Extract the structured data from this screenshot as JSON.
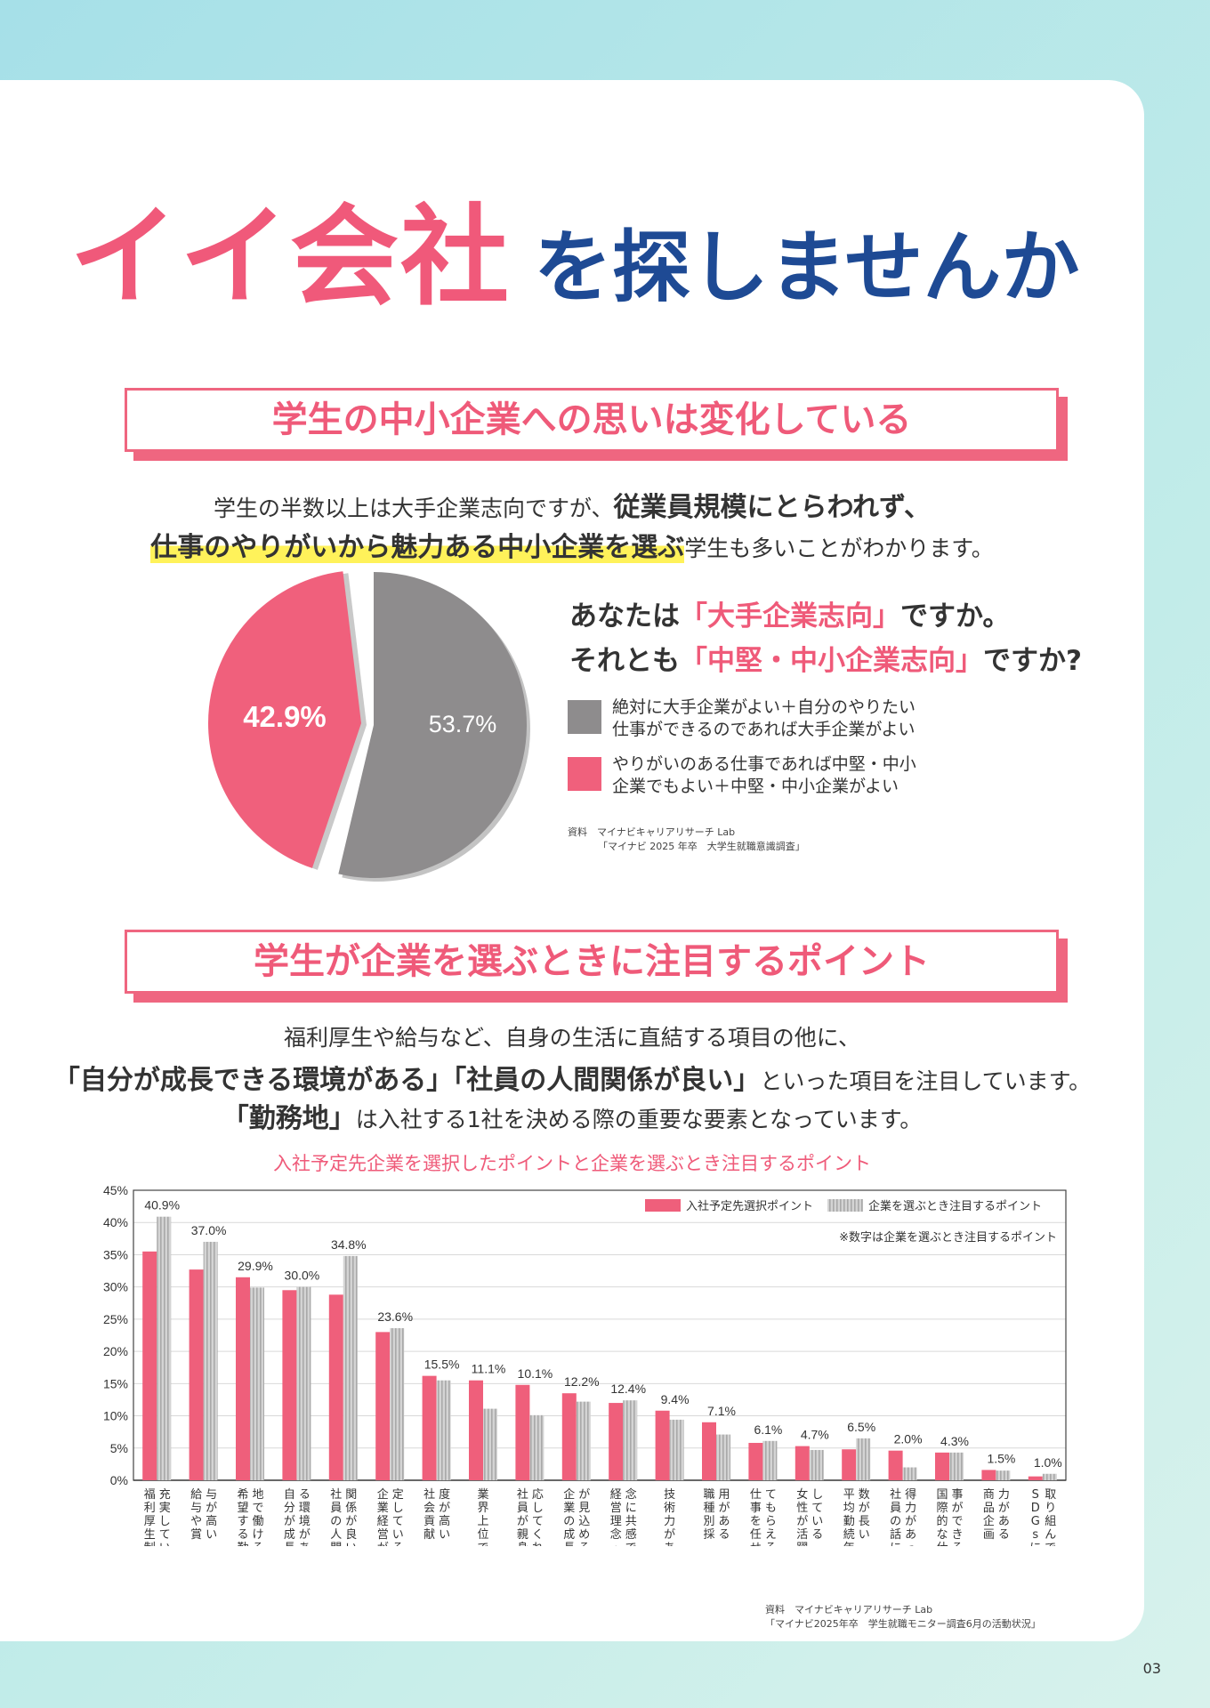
{
  "headline": {
    "pink": "イイ会社",
    "blue": "を探しませんか"
  },
  "section1": {
    "title": "学生の中小企業への思いは変化している",
    "intro_line1_a": "学生の半数以上は大手企業志向ですが、",
    "intro_line1_b": "従業員規模にとらわれず、",
    "intro_line2_a": "仕事のやりがいから魅力ある中小企業を選ぶ",
    "intro_line2_b": "学生も多いことがわかります。",
    "question_line1_a": "あなたは",
    "question_line1_b": "「大手企業志向」",
    "question_line1_c": "ですか。",
    "question_line2_a": "それとも",
    "question_line2_b": "「中堅・中小企業志向」",
    "question_line2_c": "ですか?",
    "legend": [
      {
        "line1": "絶対に大手企業がよい＋自分のやりたい",
        "line2": "仕事ができるのであれば大手企業がよい",
        "color": "#8e8c8d"
      },
      {
        "line1": "やりがいのある仕事であれば中堅・中小",
        "line2": "企業でもよい＋中堅・中小企業がよい",
        "color": "#f0607c"
      }
    ],
    "source_line1": "資料　マイナビキャリアリサーチ Lab",
    "source_line2": "「マイナビ 2025 年卒　大学生就職意識調査」"
  },
  "section2": {
    "title": "学生が企業を選ぶときに注目するポイント",
    "intro_line1": "福利厚生や給与など、自身の生活に直結する項目の他に、",
    "intro_line2_a": "「自分が成長できる環境がある」「社員の人間関係が良い」",
    "intro_line2_b": "といった項目を注目しています。",
    "intro_line3_a": "「勤務地」",
    "intro_line3_b": "は入社する1社を決める際の重要な要素となっています。",
    "chart_title": "入社予定先企業を選択したポイントと企業を選ぶとき注目するポイント",
    "note": "※数字は企業を選ぶとき注目するポイント",
    "source_line1": "資料　マイナビキャリアリサーチ Lab",
    "source_line2": "「マイナビ2025年卒　学生就職モニター調査6月の活動状況」"
  },
  "page_number": "03",
  "colors": {
    "pink": "#f0597a",
    "navy": "#1e4a94",
    "gray": "#8e8c8d",
    "bar_pink": "#ef5f7b",
    "bar_gray": "#c4c4c4"
  },
  "chart_data": [
    {
      "type": "pie",
      "slices": [
        {
          "label": "53.7%",
          "value": 53.7,
          "color": "#8e8c8d"
        },
        {
          "label": "42.9%",
          "value": 42.9,
          "color": "#f0607c"
        }
      ]
    },
    {
      "type": "bar",
      "ylim": [
        0,
        45
      ],
      "yticks": [
        "0%",
        "5%",
        "10%",
        "15%",
        "20%",
        "25%",
        "30%",
        "35%",
        "40%",
        "45%"
      ],
      "categories": [
        "福利厚生制度が充実している",
        "給与や賞与が高い",
        "希望する勤務地で働ける",
        "自分が成長できる環境がある",
        "社員の人間関係が良い",
        "企業経営が安定している",
        "社会貢献度が高い",
        "業界上位である",
        "社員が親身に対応してくれる",
        "企業の成長性が見込める",
        "経営理念・企業理念に共感できる",
        "技術力がある",
        "職種別採用がある",
        "仕事を任せてもらえる",
        "女性が活躍している",
        "平均勤続年数が長い",
        "社員の話に説得力があった",
        "国際的な仕事ができる",
        "商品企画力がある",
        "SDGsに熱心に取り組んでいる"
      ],
      "series": [
        {
          "name": "入社予定先選択ポイント",
          "values": [
            35.5,
            32.7,
            31.5,
            29.5,
            28.8,
            23.0,
            16.2,
            15.5,
            14.8,
            13.5,
            12.0,
            10.8,
            9.0,
            5.8,
            5.3,
            4.8,
            4.6,
            4.3,
            1.6,
            0.6
          ]
        },
        {
          "name": "企業を選ぶとき注目するポイント",
          "values": [
            40.9,
            37.0,
            29.9,
            30.0,
            34.8,
            23.6,
            15.5,
            11.1,
            10.1,
            12.2,
            12.4,
            9.4,
            7.1,
            6.1,
            4.7,
            6.5,
            2.0,
            4.3,
            1.5,
            1.0
          ]
        }
      ],
      "data_labels": [
        "40.9%",
        "37.0%",
        "29.9%",
        "30.0%",
        "34.8%",
        "23.6%",
        "15.5%",
        "11.1%",
        "10.1%",
        "12.2%",
        "12.4%",
        "9.4%",
        "7.1%",
        "6.1%",
        "4.7%",
        "6.5%",
        "2.0%",
        "4.3%",
        "1.5%",
        "1.0%"
      ],
      "legend_position": "top-right",
      "grid": true
    }
  ]
}
